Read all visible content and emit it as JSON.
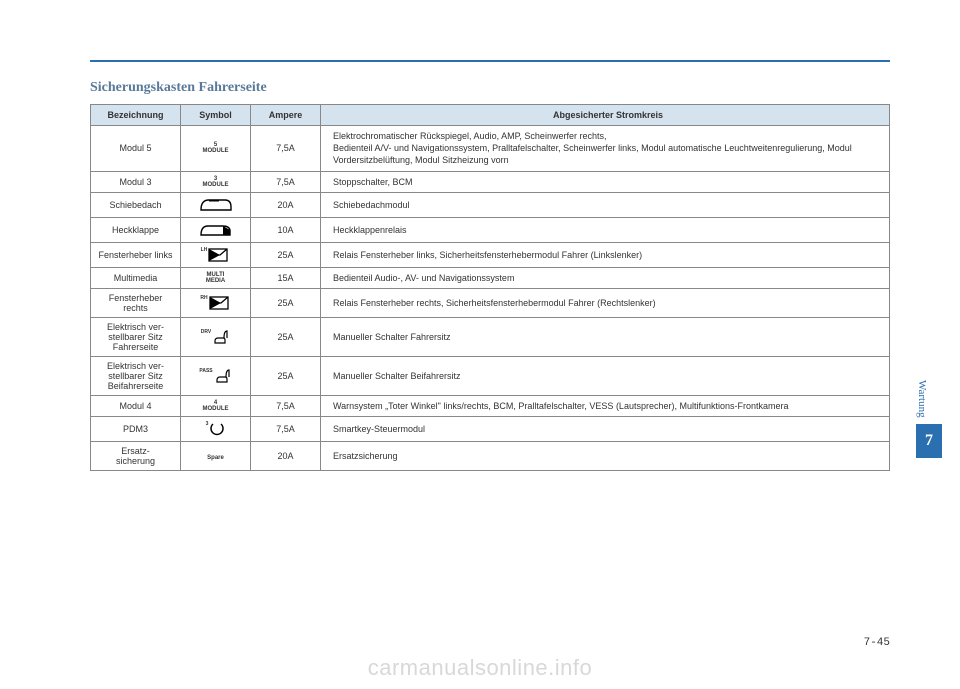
{
  "title": "Sicherungskasten Fahrerseite",
  "headers": {
    "name": "Bezeichnung",
    "symbol": "Symbol",
    "ampere": "Ampere",
    "circuit": "Abgesicherter Stromkreis"
  },
  "rows": [
    {
      "name": "Modul 5",
      "symtype": "module",
      "symlabel": "5",
      "symtext": "MODULE",
      "amp": "7,5A",
      "desc": "Elektrochromatischer Rückspiegel, Audio, AMP, Scheinwerfer rechts,\nBedienteil A/V- und Navigationssystem, Pralltafelschalter, Scheinwerfer links, Modul automatische Leuchtweitenregulierung, Modul Vordersitzbelüftung, Modul Sitzheizung vorn"
    },
    {
      "name": "Modul 3",
      "symtype": "module",
      "symlabel": "3",
      "symtext": "MODULE",
      "amp": "7,5A",
      "desc": "Stoppschalter, BCM"
    },
    {
      "name": "Schiebedach",
      "symtype": "sunroof",
      "amp": "20A",
      "desc": "Schiebedachmodul"
    },
    {
      "name": "Heckklappe",
      "symtype": "tailgate",
      "amp": "10A",
      "desc": "Heckklappenrelais"
    },
    {
      "name": "Fensterheber links",
      "symtype": "window-lh",
      "symlabel": "LH",
      "amp": "25A",
      "desc": "Relais Fensterheber links, Sicherheitsfensterhebermodul Fahrer (Linkslenker)"
    },
    {
      "name": "Multimedia",
      "symtype": "text",
      "symtext": "MULTI\nMEDIA",
      "amp": "15A",
      "desc": "Bedienteil Audio-, AV- und Navigationssystem"
    },
    {
      "name": "Fensterheber rechts",
      "symtype": "window-rh",
      "symlabel": "RH",
      "amp": "25A",
      "desc": "Relais Fensterheber rechts, Sicherheitsfensterhebermodul Fahrer (Rechtslenker)"
    },
    {
      "name": "Elektrisch ver-\nstellbarer Sitz Fahrerseite",
      "symtype": "seat-drv",
      "symlabel": "DRV",
      "amp": "25A",
      "desc": "Manueller Schalter Fahrersitz"
    },
    {
      "name": "Elektrisch ver-\nstellbarer Sitz Beifahrerseite",
      "symtype": "seat-pass",
      "symlabel": "PASS",
      "amp": "25A",
      "desc": "Manueller Schalter Beifahrersitz"
    },
    {
      "name": "Modul 4",
      "symtype": "module",
      "symlabel": "4",
      "symtext": "MODULE",
      "amp": "7,5A",
      "desc": "Warnsystem „Toter Winkel\" links/rechts, BCM, Pralltafelschalter, VESS (Lautsprecher), Multifunktions-Frontkamera"
    },
    {
      "name": "PDM3",
      "symtype": "pdm",
      "symlabel": "3",
      "amp": "7,5A",
      "desc": "Smartkey-Steuermodul"
    },
    {
      "name": "Ersatz-\nsicherung",
      "symtype": "text",
      "symtext": "Spare",
      "amp": "20A",
      "desc": "Ersatzsicherung"
    }
  ],
  "sidebar": {
    "label": "Wartung",
    "chapter": "7"
  },
  "pagenum": "7-45",
  "watermark": "carmanualsonline.info",
  "colors": {
    "accent": "#2a6fb0",
    "header_bg": "#d5e3ef",
    "title_color": "#5a7a9a",
    "border": "#888888",
    "watermark": "#d8d8d8"
  }
}
